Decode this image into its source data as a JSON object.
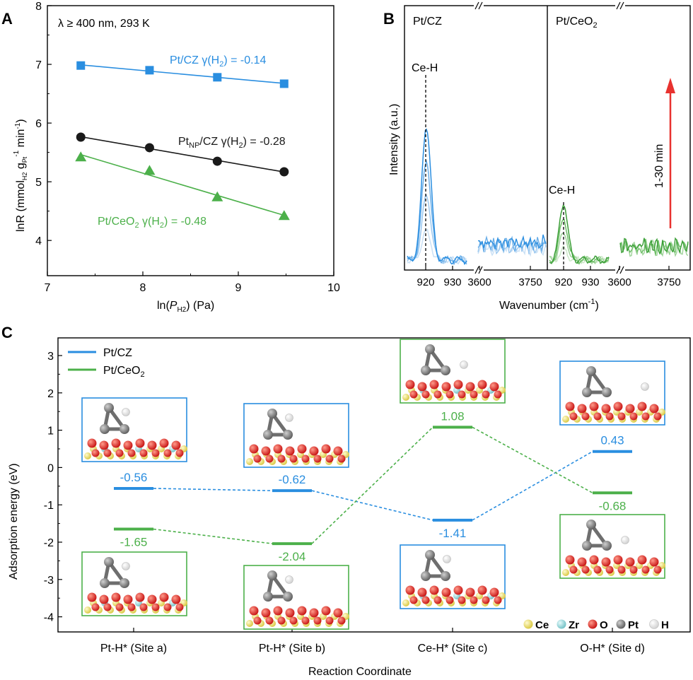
{
  "colors": {
    "blue": "#2a8ee0",
    "black": "#1a1a1a",
    "green": "#4cb04a",
    "red": "#e8322f",
    "ce": "#f2e56b",
    "zr": "#8fd6d9",
    "o": "#e01a1a",
    "pt": "#7a7a7a",
    "h": "#f4f4f4"
  },
  "chart_data": [
    {
      "panel": "A",
      "type": "scatter",
      "annotation": "λ ≥ 400 nm, 293 K",
      "xlabel": {
        "prefix": "ln(",
        "var": "P",
        "sub": "H2",
        "suffix": ") (Pa)"
      },
      "ylabel": {
        "a": "lnR (mmol",
        "sub1": "H2",
        "b": " g",
        "sub2": "Pt",
        "sup": "-1",
        "c": " min",
        "sup2": "-1",
        "d": ")"
      },
      "xlim": [
        7,
        10
      ],
      "ylim": [
        3.4,
        8
      ],
      "xticks": [
        "7",
        "8",
        "9",
        "10"
      ],
      "yticks": [
        "4",
        "5",
        "6",
        "7",
        "8"
      ],
      "series": [
        {
          "name": "Pt/CZ",
          "x": [
            7.35,
            8.07,
            8.78,
            9.48
          ],
          "y": [
            6.98,
            6.9,
            6.78,
            6.67
          ],
          "marker": "square",
          "color_key": "blue",
          "label_main": "Pt/CZ  γ(H",
          "label_sub": "2",
          "label_end": ") = -0.14"
        },
        {
          "name": "PtNP/CZ",
          "x": [
            7.35,
            8.07,
            8.78,
            9.48
          ],
          "y": [
            5.76,
            5.58,
            5.35,
            5.17
          ],
          "marker": "circle",
          "color_key": "black",
          "label_main": "Pt",
          "label_sub": "NP",
          "label_end": "/CZ  γ(H",
          "label_sub2": "2",
          "label_end2": ") = -0.28"
        },
        {
          "name": "Pt/CeO2",
          "x": [
            7.35,
            8.07,
            8.78,
            9.48
          ],
          "y": [
            5.42,
            5.19,
            4.74,
            4.42
          ],
          "marker": "triangle",
          "color_key": "green",
          "label_main": "Pt/CeO",
          "label_sub": "2",
          "label_end": "  γ(H",
          "label_sub2": "2",
          "label_end2": ") = -0.48"
        }
      ]
    },
    {
      "panel": "B",
      "type": "line",
      "ylabel": "Intensity (a.u.)",
      "xlabel": {
        "text": "Wavenumber (cm",
        "sup": "-1",
        "end": ")"
      },
      "subpanels": [
        {
          "title": "Pt/CZ",
          "peak_label": "Ce-H",
          "peak_x": 922,
          "color_key": "blue"
        },
        {
          "title": "Pt/CeO",
          "title_sub": "2",
          "peak_label": "Ce-H",
          "peak_x": 920,
          "color_key": "green"
        }
      ],
      "xticks_low": [
        "920",
        "930"
      ],
      "xticks_high": [
        "3600",
        "3750"
      ],
      "arrow_label": "1-30 min"
    },
    {
      "panel": "C",
      "type": "line",
      "ylabel": "Adsorption energy (eV)",
      "xlabel": "Reaction Coordinate",
      "ylim": [
        -4.3,
        3.5
      ],
      "yticks": [
        "3",
        "2",
        "1",
        "0",
        "-1",
        "-2",
        "-3",
        "-4"
      ],
      "categories": [
        "Pt-H* (Site a)",
        "Pt-H* (Site b)",
        "Ce-H* (Site c)",
        "O-H* (Site d)"
      ],
      "legend": [
        {
          "name": "Pt/CZ",
          "color_key": "blue"
        },
        {
          "name": "Pt/CeO",
          "sub": "2",
          "color_key": "green"
        }
      ],
      "series": [
        {
          "name": "Pt/CZ",
          "color_key": "blue",
          "values": [
            -0.56,
            -0.62,
            -1.41,
            0.43
          ],
          "labels": [
            "-0.56",
            "-0.62",
            "-1.41",
            "0.43"
          ]
        },
        {
          "name": "Pt/CeO2",
          "color_key": "green",
          "values": [
            -1.65,
            -2.04,
            1.08,
            -0.68
          ],
          "labels": [
            "-1.65",
            "-2.04",
            "1.08",
            "-0.68"
          ]
        }
      ],
      "atom_legend": [
        "Ce",
        "Zr",
        "O",
        "Pt",
        "H"
      ]
    }
  ],
  "panel_letters": [
    "A",
    "B",
    "C"
  ]
}
